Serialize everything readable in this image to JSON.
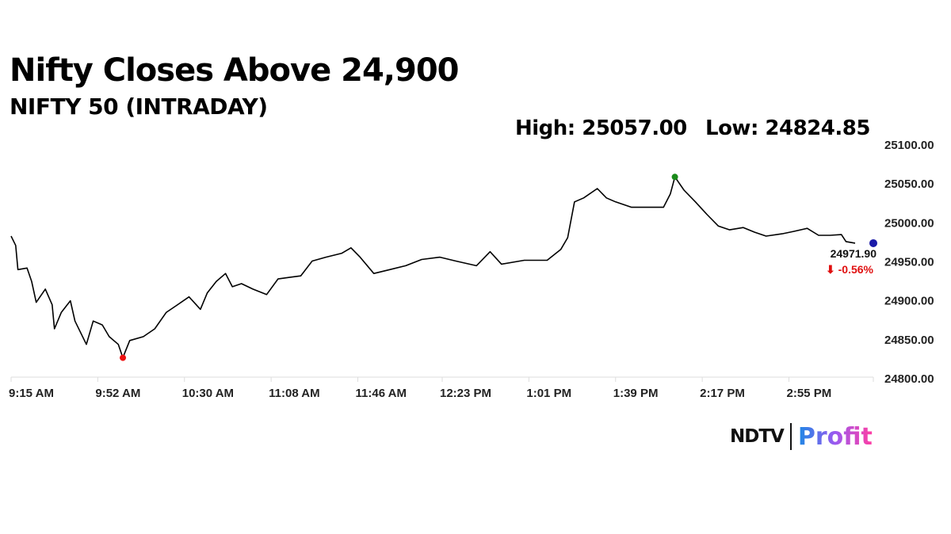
{
  "header": {
    "title": "Nifty Closes Above 24,900",
    "subtitle": "NIFTY 50 (INTRADAY)",
    "high_label": "High: 25057.00",
    "low_label": "Low: 24824.85"
  },
  "chart_data": {
    "type": "line",
    "title": "Nifty Closes Above 24,900",
    "subtitle": "NIFTY 50 (INTRADAY)",
    "xlabel": "",
    "ylabel": "",
    "ylim": [
      24800,
      25100
    ],
    "xlim": [
      "09:15",
      "15:33"
    ],
    "y_ticks": [
      "24800.00",
      "24850.00",
      "24900.00",
      "24950.00",
      "25000.00",
      "25050.00",
      "25100.00"
    ],
    "x_ticks": [
      {
        "time": "09:15",
        "label": "9:15 AM"
      },
      {
        "time": "09:53",
        "label": "9:52 AM"
      },
      {
        "time": "10:31",
        "label": "10:30 AM"
      },
      {
        "time": "11:09",
        "label": "11:08 AM"
      },
      {
        "time": "11:47",
        "label": "11:46 AM"
      },
      {
        "time": "12:24",
        "label": "12:23 PM"
      },
      {
        "time": "13:02",
        "label": "1:01 PM"
      },
      {
        "time": "13:40",
        "label": "1:39 PM"
      },
      {
        "time": "14:18",
        "label": "2:17 PM"
      },
      {
        "time": "14:56",
        "label": "2:55 PM"
      },
      {
        "time": "15:33",
        "label": ""
      }
    ],
    "grid": false,
    "series": [
      {
        "color": "#000000",
        "points": [
          [
            "09:15",
            24981
          ],
          [
            "09:17",
            24969
          ],
          [
            "09:18",
            24938
          ],
          [
            "09:22",
            24940
          ],
          [
            "09:24",
            24923
          ],
          [
            "09:26",
            24896
          ],
          [
            "09:30",
            24913
          ],
          [
            "09:33",
            24893
          ],
          [
            "09:34",
            24862
          ],
          [
            "09:37",
            24883
          ],
          [
            "09:41",
            24898
          ],
          [
            "09:43",
            24872
          ],
          [
            "09:48",
            24842
          ],
          [
            "09:51",
            24872
          ],
          [
            "09:55",
            24867
          ],
          [
            "09:58",
            24852
          ],
          [
            "10:02",
            24842
          ],
          [
            "10:04",
            24825
          ],
          [
            "10:07",
            24847
          ],
          [
            "10:13",
            24852
          ],
          [
            "10:18",
            24862
          ],
          [
            "10:23",
            24883
          ],
          [
            "10:28",
            24893
          ],
          [
            "10:33",
            24903
          ],
          [
            "10:38",
            24887
          ],
          [
            "10:41",
            24908
          ],
          [
            "10:45",
            24923
          ],
          [
            "10:49",
            24933
          ],
          [
            "10:52",
            24916
          ],
          [
            "10:56",
            24920
          ],
          [
            "11:01",
            24913
          ],
          [
            "11:07",
            24906
          ],
          [
            "11:12",
            24926
          ],
          [
            "11:17",
            24928
          ],
          [
            "11:22",
            24930
          ],
          [
            "11:27",
            24949
          ],
          [
            "11:33",
            24954
          ],
          [
            "11:40",
            24959
          ],
          [
            "11:44",
            24966
          ],
          [
            "11:48",
            24954
          ],
          [
            "11:54",
            24933
          ],
          [
            "12:01",
            24938
          ],
          [
            "12:08",
            24943
          ],
          [
            "12:15",
            24951
          ],
          [
            "12:23",
            24954
          ],
          [
            "12:30",
            24949
          ],
          [
            "12:39",
            24943
          ],
          [
            "12:45",
            24961
          ],
          [
            "12:50",
            24945
          ],
          [
            "13:00",
            24950
          ],
          [
            "13:10",
            24950
          ],
          [
            "13:16",
            24964
          ],
          [
            "13:19",
            24979
          ],
          [
            "13:22",
            25025
          ],
          [
            "13:26",
            25030
          ],
          [
            "13:32",
            25042
          ],
          [
            "13:36",
            25030
          ],
          [
            "13:40",
            25025
          ],
          [
            "13:47",
            25018
          ],
          [
            "13:54",
            25018
          ],
          [
            "14:01",
            25018
          ],
          [
            "14:04",
            25035
          ],
          [
            "14:06",
            25057
          ],
          [
            "14:10",
            25040
          ],
          [
            "14:15",
            25025
          ],
          [
            "14:20",
            25009
          ],
          [
            "14:25",
            24994
          ],
          [
            "14:30",
            24989
          ],
          [
            "14:36",
            24992
          ],
          [
            "14:41",
            24986
          ],
          [
            "14:46",
            24981
          ],
          [
            "14:53",
            24984
          ],
          [
            "14:58",
            24987
          ],
          [
            "15:04",
            24991
          ],
          [
            "15:09",
            24982
          ],
          [
            "15:14",
            24982
          ],
          [
            "15:19",
            24983
          ],
          [
            "15:21",
            24974
          ],
          [
            "15:25",
            24972
          ]
        ]
      }
    ],
    "markers": {
      "high": {
        "time": "14:06",
        "value": 25057.0,
        "color": "#1a8a1a"
      },
      "low": {
        "time": "10:04",
        "value": 24824.85,
        "color": "#ee1111"
      },
      "close": {
        "time": "15:33",
        "value": 24971.9,
        "color": "#1a1aa8"
      }
    },
    "annotations": {
      "close_value": "24971.90",
      "change": "⬇ -0.56%",
      "change_color": "#e01010"
    }
  },
  "branding": {
    "left": "NDTV",
    "right": "Profit"
  }
}
